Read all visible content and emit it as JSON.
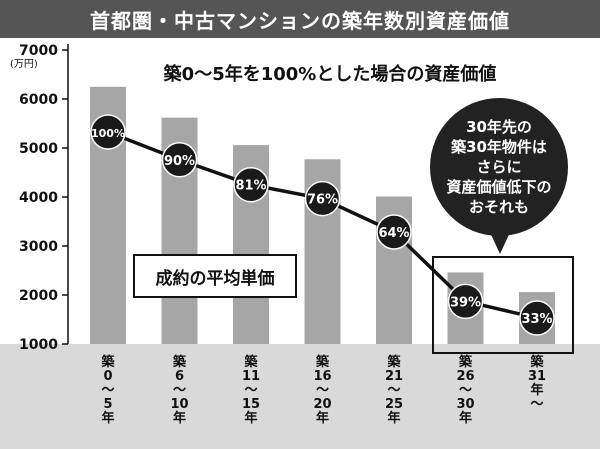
{
  "title": "首都圏・中古マンションの築年数別資産価値",
  "subtitle": "築0～5年を100%とした場合の資産価値",
  "price_label": "成約の平均単価",
  "y_unit": "(万円)",
  "callout_lines": [
    "30年先の",
    "築30年物件は",
    "さらに",
    "資産価値低下の",
    "おそれも"
  ],
  "chart_data": {
    "type": "bar",
    "title": "首都圏・中古マンションの築年数別資産価値",
    "categories": [
      "築0～5年",
      "築6～10年",
      "築11～15年",
      "築16～20年",
      "築21～25年",
      "築26～30年",
      "築31年～"
    ],
    "category_lines": [
      [
        "築",
        "0",
        "～",
        "5",
        "年"
      ],
      [
        "築",
        "6",
        "～",
        "10",
        "年"
      ],
      [
        "築",
        "11",
        "～",
        "15",
        "年"
      ],
      [
        "築",
        "16",
        "～",
        "20",
        "年"
      ],
      [
        "築",
        "21",
        "～",
        "25",
        "年"
      ],
      [
        "築",
        "26",
        "～",
        "30",
        "年"
      ],
      [
        "築",
        "31",
        "年",
        "～"
      ]
    ],
    "series": [
      {
        "name": "成約の平均単価",
        "values": [
          6250,
          5620,
          5060,
          4770,
          4010,
          2460,
          2060
        ]
      }
    ],
    "ratio_series": {
      "values": [
        100,
        90,
        81,
        76,
        64,
        39,
        33
      ],
      "labels": [
        "100%",
        "90%",
        "81%",
        "76%",
        "64%",
        "39%",
        "33%"
      ]
    },
    "ylabel": "(万円)",
    "ylim": [
      1000,
      7000
    ],
    "yticks": [
      1000,
      2000,
      3000,
      4000,
      5000,
      6000,
      7000
    ],
    "grid": false,
    "colors": {
      "bar": "#a6a6a6",
      "marker": "#1a1a1a",
      "line": "#111111",
      "band": "#d9d9d9",
      "title_bg": "#555555"
    }
  }
}
